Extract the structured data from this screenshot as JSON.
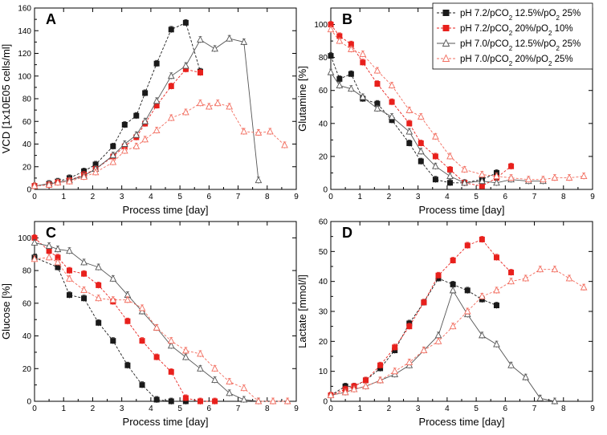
{
  "figure": {
    "legend": [
      {
        "label": "pH 7.2/pCO2 12.5%/pO2 25%",
        "parts": [
          [
            "pH 7.2/pCO",
            false
          ],
          [
            "2",
            true
          ],
          [
            " 12.5%/pO",
            false
          ],
          [
            "2",
            true
          ],
          [
            " 25%",
            false
          ]
        ],
        "color": "#222222",
        "marker": "square-filled"
      },
      {
        "label": "pH 7.2/pCO2 20%/pO2 10%",
        "parts": [
          [
            "pH 7.2/pCO",
            false
          ],
          [
            "2",
            true
          ],
          [
            " 20%/pO",
            false
          ],
          [
            "2",
            true
          ],
          [
            " 10%",
            false
          ]
        ],
        "color": "#e8201c",
        "marker": "square-filled"
      },
      {
        "label": "pH 7.0/pCO2 12.5%/pO2 25%",
        "parts": [
          [
            "pH 7.0/pCO",
            false
          ],
          [
            "2",
            true
          ],
          [
            " 12.5%/pO",
            false
          ],
          [
            "2",
            true
          ],
          [
            " 25%",
            false
          ]
        ],
        "color": "#555555",
        "marker": "triangle-open"
      },
      {
        "label": "pH 7.0/pCO2 20%/pO2 25%",
        "parts": [
          [
            "pH 7.0/pCO",
            false
          ],
          [
            "2",
            true
          ],
          [
            " 20%/pO",
            false
          ],
          [
            "2",
            true
          ],
          [
            " 25%",
            false
          ]
        ],
        "color": "#f26d5f",
        "marker": "triangle-open"
      }
    ]
  },
  "chart_data": [
    {
      "panel": "A",
      "type": "line",
      "xlabel": "Process time [day]",
      "ylabel": "VCD [1x10E05 cells/ml]",
      "xlim": [
        0,
        9
      ],
      "ylim": [
        0,
        160
      ],
      "xticks": [
        0,
        1,
        2,
        3,
        4,
        5,
        6,
        7,
        8,
        9
      ],
      "yticks": [
        0,
        20,
        40,
        60,
        80,
        100,
        120,
        140,
        160
      ],
      "series": [
        {
          "name": "pH 7.2/pCO2 12.5%/pO2 25%",
          "x": [
            0,
            0.5,
            0.8,
            1.2,
            1.7,
            2.1,
            2.7,
            3.1,
            3.5,
            3.8,
            4.2,
            4.7,
            5.2,
            5.7
          ],
          "y": [
            3,
            5,
            7,
            10,
            16,
            22,
            38,
            57,
            65,
            85,
            111,
            141,
            147,
            104
          ]
        },
        {
          "name": "pH 7.2/pCO2 20%/pO2 10%",
          "x": [
            0,
            0.5,
            0.8,
            1.2,
            1.7,
            2.1,
            2.7,
            3.1,
            3.5,
            3.8,
            4.2,
            4.7,
            5.2,
            5.7
          ],
          "y": [
            3,
            4,
            6,
            8,
            13,
            18,
            29,
            38,
            46,
            58,
            74,
            91,
            106,
            103
          ]
        },
        {
          "name": "pH 7.0/pCO2 12.5%/pO2 25%",
          "x": [
            0,
            0.5,
            0.8,
            1.2,
            1.7,
            2.1,
            2.7,
            3.1,
            3.5,
            3.8,
            4.2,
            4.7,
            5.2,
            5.7,
            6.2,
            6.7,
            7.2,
            7.7
          ],
          "y": [
            3,
            5,
            6,
            8,
            12,
            18,
            30,
            40,
            48,
            60,
            78,
            100,
            109,
            132,
            124,
            133,
            130,
            8
          ]
        },
        {
          "name": "pH 7.0/pCO2 20%/pO2 25%",
          "x": [
            0,
            0.5,
            0.8,
            1.2,
            1.7,
            2.1,
            2.7,
            3.1,
            3.5,
            3.8,
            4.2,
            4.7,
            5.2,
            5.7,
            6.0,
            6.3,
            6.7,
            7.2,
            7.7,
            8.1,
            8.6
          ],
          "y": [
            3,
            4,
            6,
            7,
            11,
            15,
            24,
            34,
            38,
            44,
            52,
            63,
            68,
            76,
            73,
            76,
            73,
            51,
            50,
            51,
            39
          ]
        }
      ]
    },
    {
      "panel": "B",
      "type": "line",
      "xlabel": "Process time [day]",
      "ylabel": "Glutamine [%]",
      "xlim": [
        0,
        9
      ],
      "ylim": [
        0,
        110
      ],
      "xticks": [
        0,
        1,
        2,
        3,
        4,
        5,
        6,
        7,
        8,
        9
      ],
      "yticks": [
        0,
        20,
        40,
        60,
        80,
        100
      ],
      "series": [
        {
          "name": "pH 7.2/pCO2 12.5%/pO2 25%",
          "x": [
            0,
            0.3,
            0.7,
            1.1,
            1.6,
            2.1,
            2.7,
            3.1,
            3.6,
            4.1,
            4.6,
            5.2,
            5.7
          ],
          "y": [
            81,
            67,
            70,
            55,
            52,
            42,
            28,
            17,
            6,
            4,
            4,
            6,
            10
          ]
        },
        {
          "name": "pH 7.2/pCO2 20%/pO2 10%",
          "x": [
            0,
            0.3,
            0.7,
            1.1,
            1.6,
            2.1,
            2.7,
            3.1,
            3.6,
            4.1,
            4.6,
            5.2,
            5.7,
            6.2
          ],
          "y": [
            100,
            93,
            88,
            77,
            64,
            53,
            40,
            28,
            20,
            12,
            4,
            2,
            7,
            14
          ]
        },
        {
          "name": "pH 7.0/pCO2 12.5%/pO2 25%",
          "x": [
            0,
            0.3,
            0.7,
            1.1,
            1.6,
            2.1,
            2.7,
            3.1,
            3.6,
            4.1,
            4.6,
            5.2,
            5.7,
            6.2,
            6.8,
            7.3
          ],
          "y": [
            71,
            63,
            61,
            56,
            49,
            44,
            35,
            23,
            14,
            8,
            4,
            5,
            4,
            6,
            5,
            5
          ]
        },
        {
          "name": "pH 7.0/pCO2 20%/pO2 25%",
          "x": [
            0,
            0.3,
            0.7,
            1.1,
            1.6,
            2.1,
            2.7,
            3.1,
            3.6,
            4.1,
            4.6,
            5.2,
            5.7,
            6.2,
            6.8,
            7.3,
            7.7,
            8.2,
            8.7
          ],
          "y": [
            97,
            90,
            85,
            82,
            72,
            63,
            48,
            44,
            32,
            20,
            12,
            9,
            8,
            7,
            6,
            6,
            7,
            7,
            8
          ]
        }
      ]
    },
    {
      "panel": "C",
      "type": "line",
      "xlabel": "Process time [day]",
      "ylabel": "Glucose [%]",
      "xlim": [
        0,
        9
      ],
      "ylim": [
        0,
        110
      ],
      "xticks": [
        0,
        1,
        2,
        3,
        4,
        5,
        6,
        7,
        8,
        9
      ],
      "yticks": [
        0,
        20,
        40,
        60,
        80,
        100
      ],
      "series": [
        {
          "name": "pH 7.2/pCO2 12.5%/pO2 25%",
          "x": [
            0,
            0.8,
            1.2,
            1.7,
            2.2,
            2.7,
            3.2,
            3.7,
            4.2,
            4.7,
            5.2
          ],
          "y": [
            88,
            82,
            65,
            63,
            48,
            37,
            22,
            10,
            1,
            0,
            0
          ]
        },
        {
          "name": "pH 7.2/pCO2 20%/pO2 10%",
          "x": [
            0,
            0.5,
            0.8,
            1.2,
            1.7,
            2.2,
            2.7,
            3.2,
            3.7,
            4.2,
            4.7,
            5.2,
            5.7,
            6.2
          ],
          "y": [
            100,
            92,
            88,
            80,
            78,
            71,
            61,
            49,
            37,
            27,
            18,
            2,
            0,
            0
          ]
        },
        {
          "name": "pH 7.0/pCO2 12.5%/pO2 25%",
          "x": [
            0,
            0.5,
            0.8,
            1.2,
            1.7,
            2.2,
            2.7,
            3.2,
            3.7,
            4.2,
            4.7,
            5.2,
            5.7,
            6.2,
            6.7,
            7.2,
            7.7
          ],
          "y": [
            97,
            95,
            93,
            92,
            85,
            82,
            75,
            65,
            55,
            45,
            34,
            27,
            20,
            13,
            5,
            1,
            0
          ]
        },
        {
          "name": "pH 7.0/pCO2 20%/pO2 25%",
          "x": [
            0,
            0.5,
            0.8,
            1.2,
            1.7,
            2.2,
            2.7,
            3.2,
            3.7,
            4.2,
            4.7,
            5.2,
            5.7,
            6.2,
            6.7,
            7.2,
            7.7,
            8.2,
            8.7
          ],
          "y": [
            87,
            88,
            85,
            75,
            68,
            63,
            62,
            62,
            57,
            45,
            37,
            31,
            29,
            20,
            12,
            8,
            0,
            0,
            0
          ]
        }
      ]
    },
    {
      "panel": "D",
      "type": "line",
      "xlabel": "Process time [day]",
      "ylabel": "Lactate [mmol/l]",
      "xlim": [
        0,
        9
      ],
      "ylim": [
        0,
        60
      ],
      "xticks": [
        0,
        1,
        2,
        3,
        4,
        5,
        6,
        7,
        8,
        9
      ],
      "yticks": [
        0,
        10,
        20,
        30,
        40,
        50,
        60
      ],
      "series": [
        {
          "name": "pH 7.2/pCO2 12.5%/pO2 25%",
          "x": [
            0,
            0.5,
            0.8,
            1.2,
            1.7,
            2.2,
            2.7,
            3.2,
            3.7,
            4.2,
            4.7,
            5.2,
            5.7
          ],
          "y": [
            2,
            5,
            5,
            7,
            11,
            17,
            26,
            33,
            41,
            39,
            37,
            34,
            32
          ]
        },
        {
          "name": "pH 7.2/pCO2 20%/pO2 10%",
          "x": [
            0,
            0.5,
            0.8,
            1.2,
            1.7,
            2.2,
            2.7,
            3.2,
            3.7,
            4.2,
            4.7,
            5.2,
            5.7,
            6.2
          ],
          "y": [
            2,
            4,
            5,
            7,
            12,
            18,
            25,
            33,
            42,
            47,
            52,
            54,
            48,
            43
          ]
        },
        {
          "name": "pH 7.0/pCO2 12.5%/pO2 25%",
          "x": [
            0,
            0.5,
            0.8,
            1.2,
            1.7,
            2.2,
            2.7,
            3.2,
            3.7,
            4.2,
            4.7,
            5.2,
            5.7,
            6.2,
            6.7,
            7.2,
            7.7
          ],
          "y": [
            2,
            3,
            4,
            5,
            7,
            9,
            12,
            17,
            22,
            37,
            29,
            22,
            19,
            12,
            8,
            1,
            0
          ]
        },
        {
          "name": "pH 7.0/pCO2 20%/pO2 25%",
          "x": [
            0,
            0.5,
            0.8,
            1.2,
            1.7,
            2.2,
            2.7,
            3.2,
            3.7,
            4.2,
            4.7,
            5.2,
            5.7,
            6.2,
            6.7,
            7.2,
            7.7,
            8.2,
            8.7
          ],
          "y": [
            2,
            3,
            4,
            5,
            7,
            10,
            13,
            17,
            20,
            25,
            30,
            35,
            37,
            40,
            41,
            44,
            44,
            41,
            38
          ]
        }
      ]
    }
  ]
}
